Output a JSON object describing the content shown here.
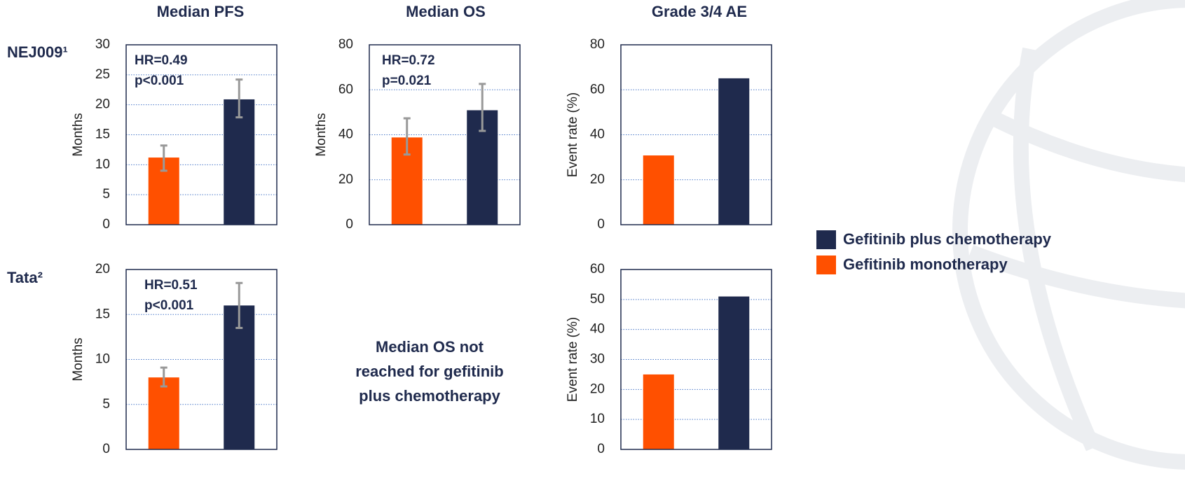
{
  "column_titles": [
    "Median PFS",
    "Median OS",
    "Grade 3/4 AE"
  ],
  "row_labels": [
    "NEJ009¹",
    "Tata²"
  ],
  "note": [
    "Median OS not",
    "reached for gefitinib",
    "plus chemotherapy"
  ],
  "chart_data": [
    {
      "type": "bar",
      "y_label": "Months",
      "annotation": [
        "HR=0.49",
        "p<0.001"
      ],
      "categories": [
        null
      ],
      "ylim": [
        0,
        30
      ],
      "yticks": [
        0,
        5,
        10,
        15,
        20,
        25,
        30
      ],
      "grid": true,
      "series": [
        {
          "name": "Gefitinib monotherapy",
          "color": "#ff5000",
          "values": [
            11.2
          ],
          "error_low": [
            9.0
          ],
          "error_high": [
            13.2
          ]
        },
        {
          "name": "Gefitinib plus chemotherapy",
          "color": "#1f2a4d",
          "values": [
            20.9
          ],
          "error_low": [
            17.9
          ],
          "error_high": [
            24.2
          ]
        }
      ]
    },
    {
      "type": "bar",
      "y_label": "Months",
      "annotation": [
        "HR=0.72",
        "p=0.021"
      ],
      "categories": [
        null
      ],
      "ylim": [
        0,
        80
      ],
      "yticks": [
        0,
        20,
        40,
        60,
        80
      ],
      "grid": true,
      "series": [
        {
          "name": "Gefitinib monotherapy",
          "color": "#ff5000",
          "values": [
            38.8
          ],
          "error_low": [
            31.2
          ],
          "error_high": [
            47.3
          ]
        },
        {
          "name": "Gefitinib plus chemotherapy",
          "color": "#1f2a4d",
          "values": [
            50.9
          ],
          "error_low": [
            41.7
          ],
          "error_high": [
            62.6
          ]
        }
      ]
    },
    {
      "type": "bar",
      "y_label": "Event rate (%)",
      "categories": [
        null
      ],
      "ylim": [
        0,
        80
      ],
      "yticks": [
        0,
        20,
        40,
        60,
        80
      ],
      "grid": true,
      "series": [
        {
          "name": "Gefitinib monotherapy",
          "color": "#ff5000",
          "values": [
            30.8
          ]
        },
        {
          "name": "Gefitinib plus chemotherapy",
          "color": "#1f2a4d",
          "values": [
            65.1
          ]
        }
      ]
    },
    {
      "type": "bar",
      "y_label": "Months",
      "annotation": [
        "HR=0.51",
        "p<0.001"
      ],
      "categories": [
        null
      ],
      "ylim": [
        0,
        20
      ],
      "yticks": [
        0,
        5,
        10,
        15,
        20
      ],
      "grid": true,
      "series": [
        {
          "name": "Gefitinib monotherapy",
          "color": "#ff5000",
          "values": [
            8.0
          ],
          "error_low": [
            7.0
          ],
          "error_high": [
            9.1
          ]
        },
        {
          "name": "Gefitinib plus chemotherapy",
          "color": "#1f2a4d",
          "values": [
            16.0
          ],
          "error_low": [
            13.5
          ],
          "error_high": [
            18.5
          ]
        }
      ]
    },
    {
      "type": "bar",
      "y_label": "Event rate (%)",
      "categories": [
        null
      ],
      "ylim": [
        0,
        60
      ],
      "yticks": [
        0,
        10,
        20,
        30,
        40,
        50,
        60
      ],
      "grid": true,
      "series": [
        {
          "name": "Gefitinib monotherapy",
          "color": "#ff5000",
          "values": [
            25
          ]
        },
        {
          "name": "Gefitinib plus chemotherapy",
          "color": "#1f2a4d",
          "values": [
            51
          ]
        }
      ]
    }
  ]
}
